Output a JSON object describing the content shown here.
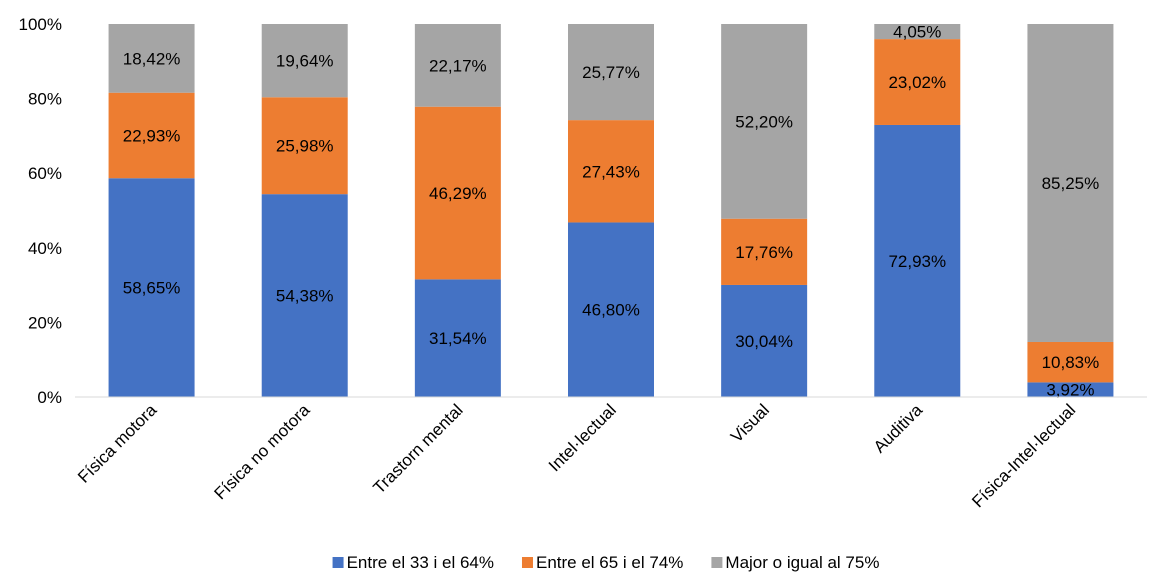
{
  "chart_data": {
    "type": "bar",
    "stacked": true,
    "categories": [
      "Física motora",
      "Física no motora",
      "Trastorn mental",
      "Intel·lectual",
      "Visual",
      "Auditiva",
      "Física-Intel·lectual"
    ],
    "series": [
      {
        "name": "Entre el 33 i el 64%",
        "color": "#4472C4",
        "values": [
          58.65,
          54.38,
          31.54,
          46.8,
          30.04,
          72.93,
          3.92
        ],
        "labels": [
          "58,65%",
          "54,38%",
          "31,54%",
          "46,80%",
          "30,04%",
          "72,93%",
          "3,92%"
        ]
      },
      {
        "name": "Entre el 65 i el 74%",
        "color": "#ED7D31",
        "values": [
          22.93,
          25.98,
          46.29,
          27.43,
          17.76,
          23.02,
          10.83
        ],
        "labels": [
          "22,93%",
          "25,98%",
          "46,29%",
          "27,43%",
          "17,76%",
          "23,02%",
          "10,83%"
        ]
      },
      {
        "name": "Major o igual al 75%",
        "color": "#A5A5A5",
        "values": [
          18.42,
          19.64,
          22.17,
          25.77,
          52.2,
          4.05,
          85.25
        ],
        "labels": [
          "18,42%",
          "19,64%",
          "22,17%",
          "25,77%",
          "52,20%",
          "4,05%",
          "85,25%"
        ]
      }
    ],
    "ylim": [
      0,
      100
    ],
    "yticks": [
      "0%",
      "20%",
      "40%",
      "60%",
      "80%",
      "100%"
    ],
    "legend_position": "bottom",
    "grid": false
  }
}
